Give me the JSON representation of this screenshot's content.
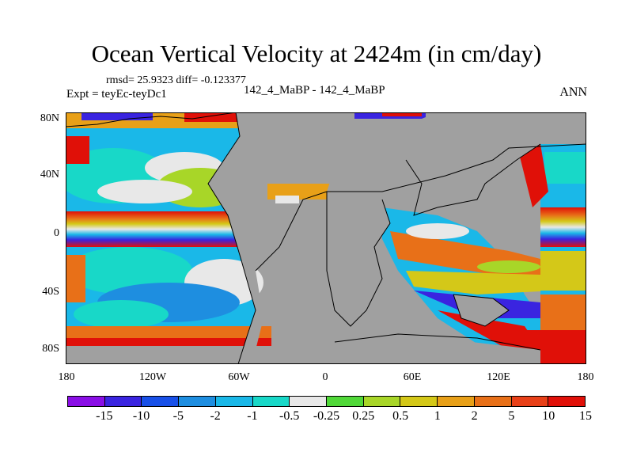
{
  "title": "Ocean Vertical Velocity at 2424m (in cm/day)",
  "stats": "rmsd= 25.9323 diff= -0.123377",
  "experiment": "Expt = teyEc-teyDc1",
  "comparison": "142_4_MaBP - 142_4_MaBP",
  "season": "ANN",
  "lat_labels": [
    "80N",
    "40N",
    "0",
    "40S",
    "80S"
  ],
  "lon_labels": [
    "180",
    "120W",
    "60W",
    "0",
    "60E",
    "120E",
    "180"
  ],
  "colorbar": {
    "colors": [
      "#8a0ee6",
      "#3a24e0",
      "#1850e8",
      "#1e8ee0",
      "#1ab8e8",
      "#18d8c8",
      "#e8e8e8",
      "#50d838",
      "#a8d628",
      "#d4c818",
      "#e8a018",
      "#e87018",
      "#e84018",
      "#e01008"
    ],
    "labels": [
      "-15",
      "-10",
      "-5",
      "-2",
      "-1",
      "-0.5",
      "-0.25",
      "0.25",
      "0.5",
      "1",
      "2",
      "5",
      "10",
      "15"
    ]
  },
  "land_color": "#a0a0a0"
}
